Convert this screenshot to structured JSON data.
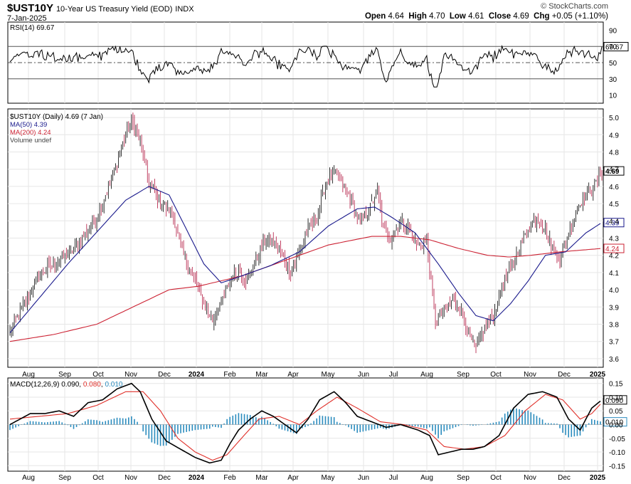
{
  "header": {
    "symbol": "$UST10Y",
    "description": "10-Year US Treasury Yield (EOD)",
    "exchange": "INDX",
    "date": "7-Jan-2025",
    "brand": "© StockCharts.com",
    "open_label": "Open",
    "open": "4.64",
    "high_label": "High",
    "high": "4.70",
    "low_label": "Low",
    "low": "4.61",
    "close_label": "Close",
    "close": "4.69",
    "chg_label": "Chg",
    "chg": "+0.05 (+1.10%)"
  },
  "legends": {
    "rsi": "RSI(14) 69.67",
    "price": "$UST10Y (Daily) 4.69 (7 Jan)",
    "ma50": "MA(50) 4.39",
    "ma200": "MA(200) 4.24",
    "volume": "Volume undef",
    "macd_prefix": "MACD(12,26,9) ",
    "macd_val": "0.090",
    "macd_signal": "0.080",
    "macd_hist": "0.010"
  },
  "colors": {
    "ma50": "#1a1a8c",
    "ma200": "#cc2233",
    "up": "#000000",
    "down": "#b0123c",
    "hist": "#2b8cbe",
    "signal": "#e0302a",
    "grid": "#e6e6e6",
    "rsi_band": "#555555"
  },
  "chart_data": [
    {
      "type": "line",
      "name": "RSI(14)",
      "value": 69.67,
      "ylim": [
        0,
        100
      ],
      "y_ticks": [
        90,
        70,
        50,
        30,
        10
      ],
      "levels": [
        70,
        50,
        30
      ],
      "current_label": "69.67"
    },
    {
      "type": "candlestick",
      "name": "$UST10Y (Daily)",
      "ylim": [
        3.55,
        5.05
      ],
      "y_ticks": [
        "3.6",
        "3.7",
        "3.8",
        "3.9",
        "4.0",
        "4.1",
        "4.2",
        "4.3",
        "4.4",
        "4.5",
        "4.6",
        "4.7",
        "4.8",
        "4.9",
        "5.0"
      ],
      "x_ticks": [
        "Aug",
        "Sep",
        "Oct",
        "Nov",
        "Dec",
        "2024",
        "Feb",
        "Mar",
        "Apr",
        "May",
        "Jun",
        "Jul",
        "Aug",
        "Sep",
        "Oct",
        "Nov",
        "Dec",
        "2025"
      ],
      "close_points": [
        [
          0,
          3.76
        ],
        [
          10,
          3.92
        ],
        [
          20,
          4.08
        ],
        [
          30,
          4.15
        ],
        [
          40,
          4.2
        ],
        [
          50,
          4.3
        ],
        [
          60,
          4.42
        ],
        [
          70,
          4.63
        ],
        [
          78,
          4.85
        ],
        [
          84,
          4.98
        ],
        [
          90,
          4.86
        ],
        [
          96,
          4.62
        ],
        [
          104,
          4.5
        ],
        [
          112,
          4.45
        ],
        [
          120,
          4.2
        ],
        [
          128,
          4.05
        ],
        [
          134,
          3.92
        ],
        [
          140,
          3.82
        ],
        [
          146,
          3.93
        ],
        [
          152,
          4.05
        ],
        [
          158,
          4.12
        ],
        [
          164,
          4.05
        ],
        [
          170,
          4.18
        ],
        [
          176,
          4.28
        ],
        [
          182,
          4.28
        ],
        [
          188,
          4.2
        ],
        [
          194,
          4.1
        ],
        [
          200,
          4.22
        ],
        [
          206,
          4.35
        ],
        [
          212,
          4.42
        ],
        [
          218,
          4.62
        ],
        [
          224,
          4.68
        ],
        [
          230,
          4.61
        ],
        [
          236,
          4.52
        ],
        [
          242,
          4.38
        ],
        [
          248,
          4.46
        ],
        [
          254,
          4.58
        ],
        [
          258,
          4.35
        ],
        [
          264,
          4.3
        ],
        [
          270,
          4.4
        ],
        [
          276,
          4.35
        ],
        [
          282,
          4.25
        ],
        [
          288,
          4.28
        ],
        [
          294,
          3.8
        ],
        [
          300,
          3.88
        ],
        [
          306,
          3.95
        ],
        [
          312,
          3.88
        ],
        [
          318,
          3.72
        ],
        [
          322,
          3.65
        ],
        [
          328,
          3.78
        ],
        [
          334,
          3.85
        ],
        [
          340,
          4.02
        ],
        [
          346,
          4.12
        ],
        [
          352,
          4.25
        ],
        [
          358,
          4.35
        ],
        [
          364,
          4.42
        ],
        [
          370,
          4.35
        ],
        [
          376,
          4.22
        ],
        [
          380,
          4.18
        ],
        [
          386,
          4.32
        ],
        [
          392,
          4.48
        ],
        [
          398,
          4.56
        ],
        [
          404,
          4.6
        ],
        [
          409,
          4.69
        ]
      ],
      "ma50_points": [
        [
          0,
          3.75
        ],
        [
          40,
          4.15
        ],
        [
          80,
          4.52
        ],
        [
          96,
          4.6
        ],
        [
          110,
          4.55
        ],
        [
          122,
          4.35
        ],
        [
          134,
          4.15
        ],
        [
          146,
          4.04
        ],
        [
          160,
          4.08
        ],
        [
          180,
          4.14
        ],
        [
          200,
          4.22
        ],
        [
          220,
          4.37
        ],
        [
          240,
          4.47
        ],
        [
          252,
          4.48
        ],
        [
          264,
          4.42
        ],
        [
          280,
          4.33
        ],
        [
          296,
          4.15
        ],
        [
          310,
          3.98
        ],
        [
          322,
          3.85
        ],
        [
          334,
          3.82
        ],
        [
          346,
          3.92
        ],
        [
          358,
          4.05
        ],
        [
          370,
          4.2
        ],
        [
          384,
          4.22
        ],
        [
          398,
          4.33
        ],
        [
          409,
          4.39
        ]
      ],
      "ma200_points": [
        [
          0,
          3.7
        ],
        [
          30,
          3.74
        ],
        [
          60,
          3.8
        ],
        [
          90,
          3.92
        ],
        [
          110,
          4.0
        ],
        [
          130,
          4.02
        ],
        [
          160,
          4.08
        ],
        [
          190,
          4.17
        ],
        [
          220,
          4.26
        ],
        [
          250,
          4.31
        ],
        [
          270,
          4.31
        ],
        [
          290,
          4.29
        ],
        [
          310,
          4.24
        ],
        [
          330,
          4.2
        ],
        [
          345,
          4.19
        ],
        [
          360,
          4.2
        ],
        [
          380,
          4.22
        ],
        [
          409,
          4.24
        ]
      ],
      "ma50_current": "4.39",
      "ma200_current": "4.24",
      "close_current": "4.69"
    },
    {
      "type": "line",
      "name": "MACD(12,26,9)",
      "ylim": [
        -0.17,
        0.17
      ],
      "y_ticks": [
        "0.15",
        "0.10",
        "0.05",
        "0.00",
        "-0.05",
        "-0.10",
        "-0.15"
      ],
      "macd": 0.09,
      "signal": 0.08,
      "histogram": 0.01,
      "macd_points": [
        [
          0,
          0.0
        ],
        [
          14,
          0.04
        ],
        [
          24,
          0.04
        ],
        [
          34,
          0.05
        ],
        [
          44,
          0.03
        ],
        [
          54,
          0.08
        ],
        [
          64,
          0.09
        ],
        [
          74,
          0.13
        ],
        [
          84,
          0.15
        ],
        [
          90,
          0.12
        ],
        [
          98,
          0.02
        ],
        [
          108,
          -0.06
        ],
        [
          118,
          -0.09
        ],
        [
          128,
          -0.12
        ],
        [
          138,
          -0.14
        ],
        [
          146,
          -0.13
        ],
        [
          152,
          -0.07
        ],
        [
          158,
          -0.02
        ],
        [
          166,
          0.02
        ],
        [
          174,
          0.05
        ],
        [
          182,
          0.03
        ],
        [
          190,
          0.0
        ],
        [
          198,
          -0.03
        ],
        [
          206,
          0.02
        ],
        [
          214,
          0.09
        ],
        [
          224,
          0.12
        ],
        [
          232,
          0.08
        ],
        [
          240,
          0.03
        ],
        [
          250,
          0.01
        ],
        [
          260,
          -0.01
        ],
        [
          270,
          0.0
        ],
        [
          282,
          -0.02
        ],
        [
          290,
          -0.04
        ],
        [
          296,
          -0.11
        ],
        [
          304,
          -0.1
        ],
        [
          312,
          -0.09
        ],
        [
          320,
          -0.09
        ],
        [
          328,
          -0.08
        ],
        [
          338,
          -0.04
        ],
        [
          348,
          0.06
        ],
        [
          358,
          0.11
        ],
        [
          368,
          0.12
        ],
        [
          378,
          0.1
        ],
        [
          386,
          0.02
        ],
        [
          394,
          -0.02
        ],
        [
          402,
          0.06
        ],
        [
          409,
          0.09
        ]
      ],
      "signal_points": [
        [
          0,
          0.02
        ],
        [
          20,
          0.03
        ],
        [
          40,
          0.04
        ],
        [
          60,
          0.07
        ],
        [
          80,
          0.12
        ],
        [
          92,
          0.12
        ],
        [
          104,
          0.05
        ],
        [
          116,
          -0.05
        ],
        [
          128,
          -0.1
        ],
        [
          140,
          -0.13
        ],
        [
          150,
          -0.11
        ],
        [
          160,
          -0.05
        ],
        [
          172,
          0.02
        ],
        [
          186,
          0.03
        ],
        [
          200,
          0.0
        ],
        [
          212,
          0.05
        ],
        [
          226,
          0.1
        ],
        [
          240,
          0.06
        ],
        [
          256,
          0.01
        ],
        [
          272,
          0.0
        ],
        [
          288,
          -0.02
        ],
        [
          300,
          -0.08
        ],
        [
          314,
          -0.09
        ],
        [
          328,
          -0.08
        ],
        [
          342,
          -0.04
        ],
        [
          356,
          0.05
        ],
        [
          370,
          0.11
        ],
        [
          382,
          0.09
        ],
        [
          394,
          0.02
        ],
        [
          402,
          0.04
        ],
        [
          409,
          0.08
        ]
      ]
    }
  ]
}
